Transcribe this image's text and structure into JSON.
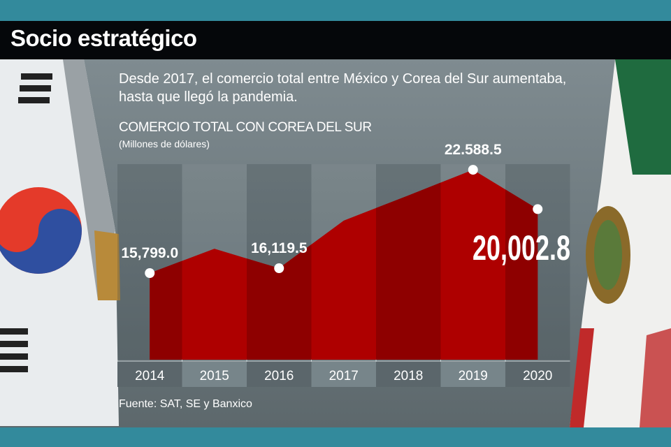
{
  "header": {
    "title": "Socio estratégico"
  },
  "subtitle": "Desde 2017, el comercio total entre México y Corea del Sur aumentaba, hasta que llegó la pandemia.",
  "source": "Fuente: SAT, SE y Banxico",
  "colors": {
    "area": "#ae0000",
    "area_dark": "#8e0000",
    "band": "#338a9c",
    "title_bar": "#05070a"
  },
  "chart_data": {
    "type": "area",
    "title": "COMERCIO TOTAL CON COREA DEL SUR",
    "unit": "(Millones de dólares)",
    "categories": [
      "2014",
      "2015",
      "2016",
      "2017",
      "2018",
      "2019",
      "2020"
    ],
    "values": [
      15799.0,
      17400,
      16119.5,
      19250,
      20900,
      22588.5,
      20002.8
    ],
    "labels": [
      {
        "index": 0,
        "text": "15,799.0"
      },
      {
        "index": 2,
        "text": "16,119.5"
      },
      {
        "index": 5,
        "text": "22.588.5"
      },
      {
        "index": 6,
        "text": "20,002.8",
        "emphasis": true
      }
    ],
    "xlabel": "",
    "ylabel": "",
    "grid": false
  }
}
